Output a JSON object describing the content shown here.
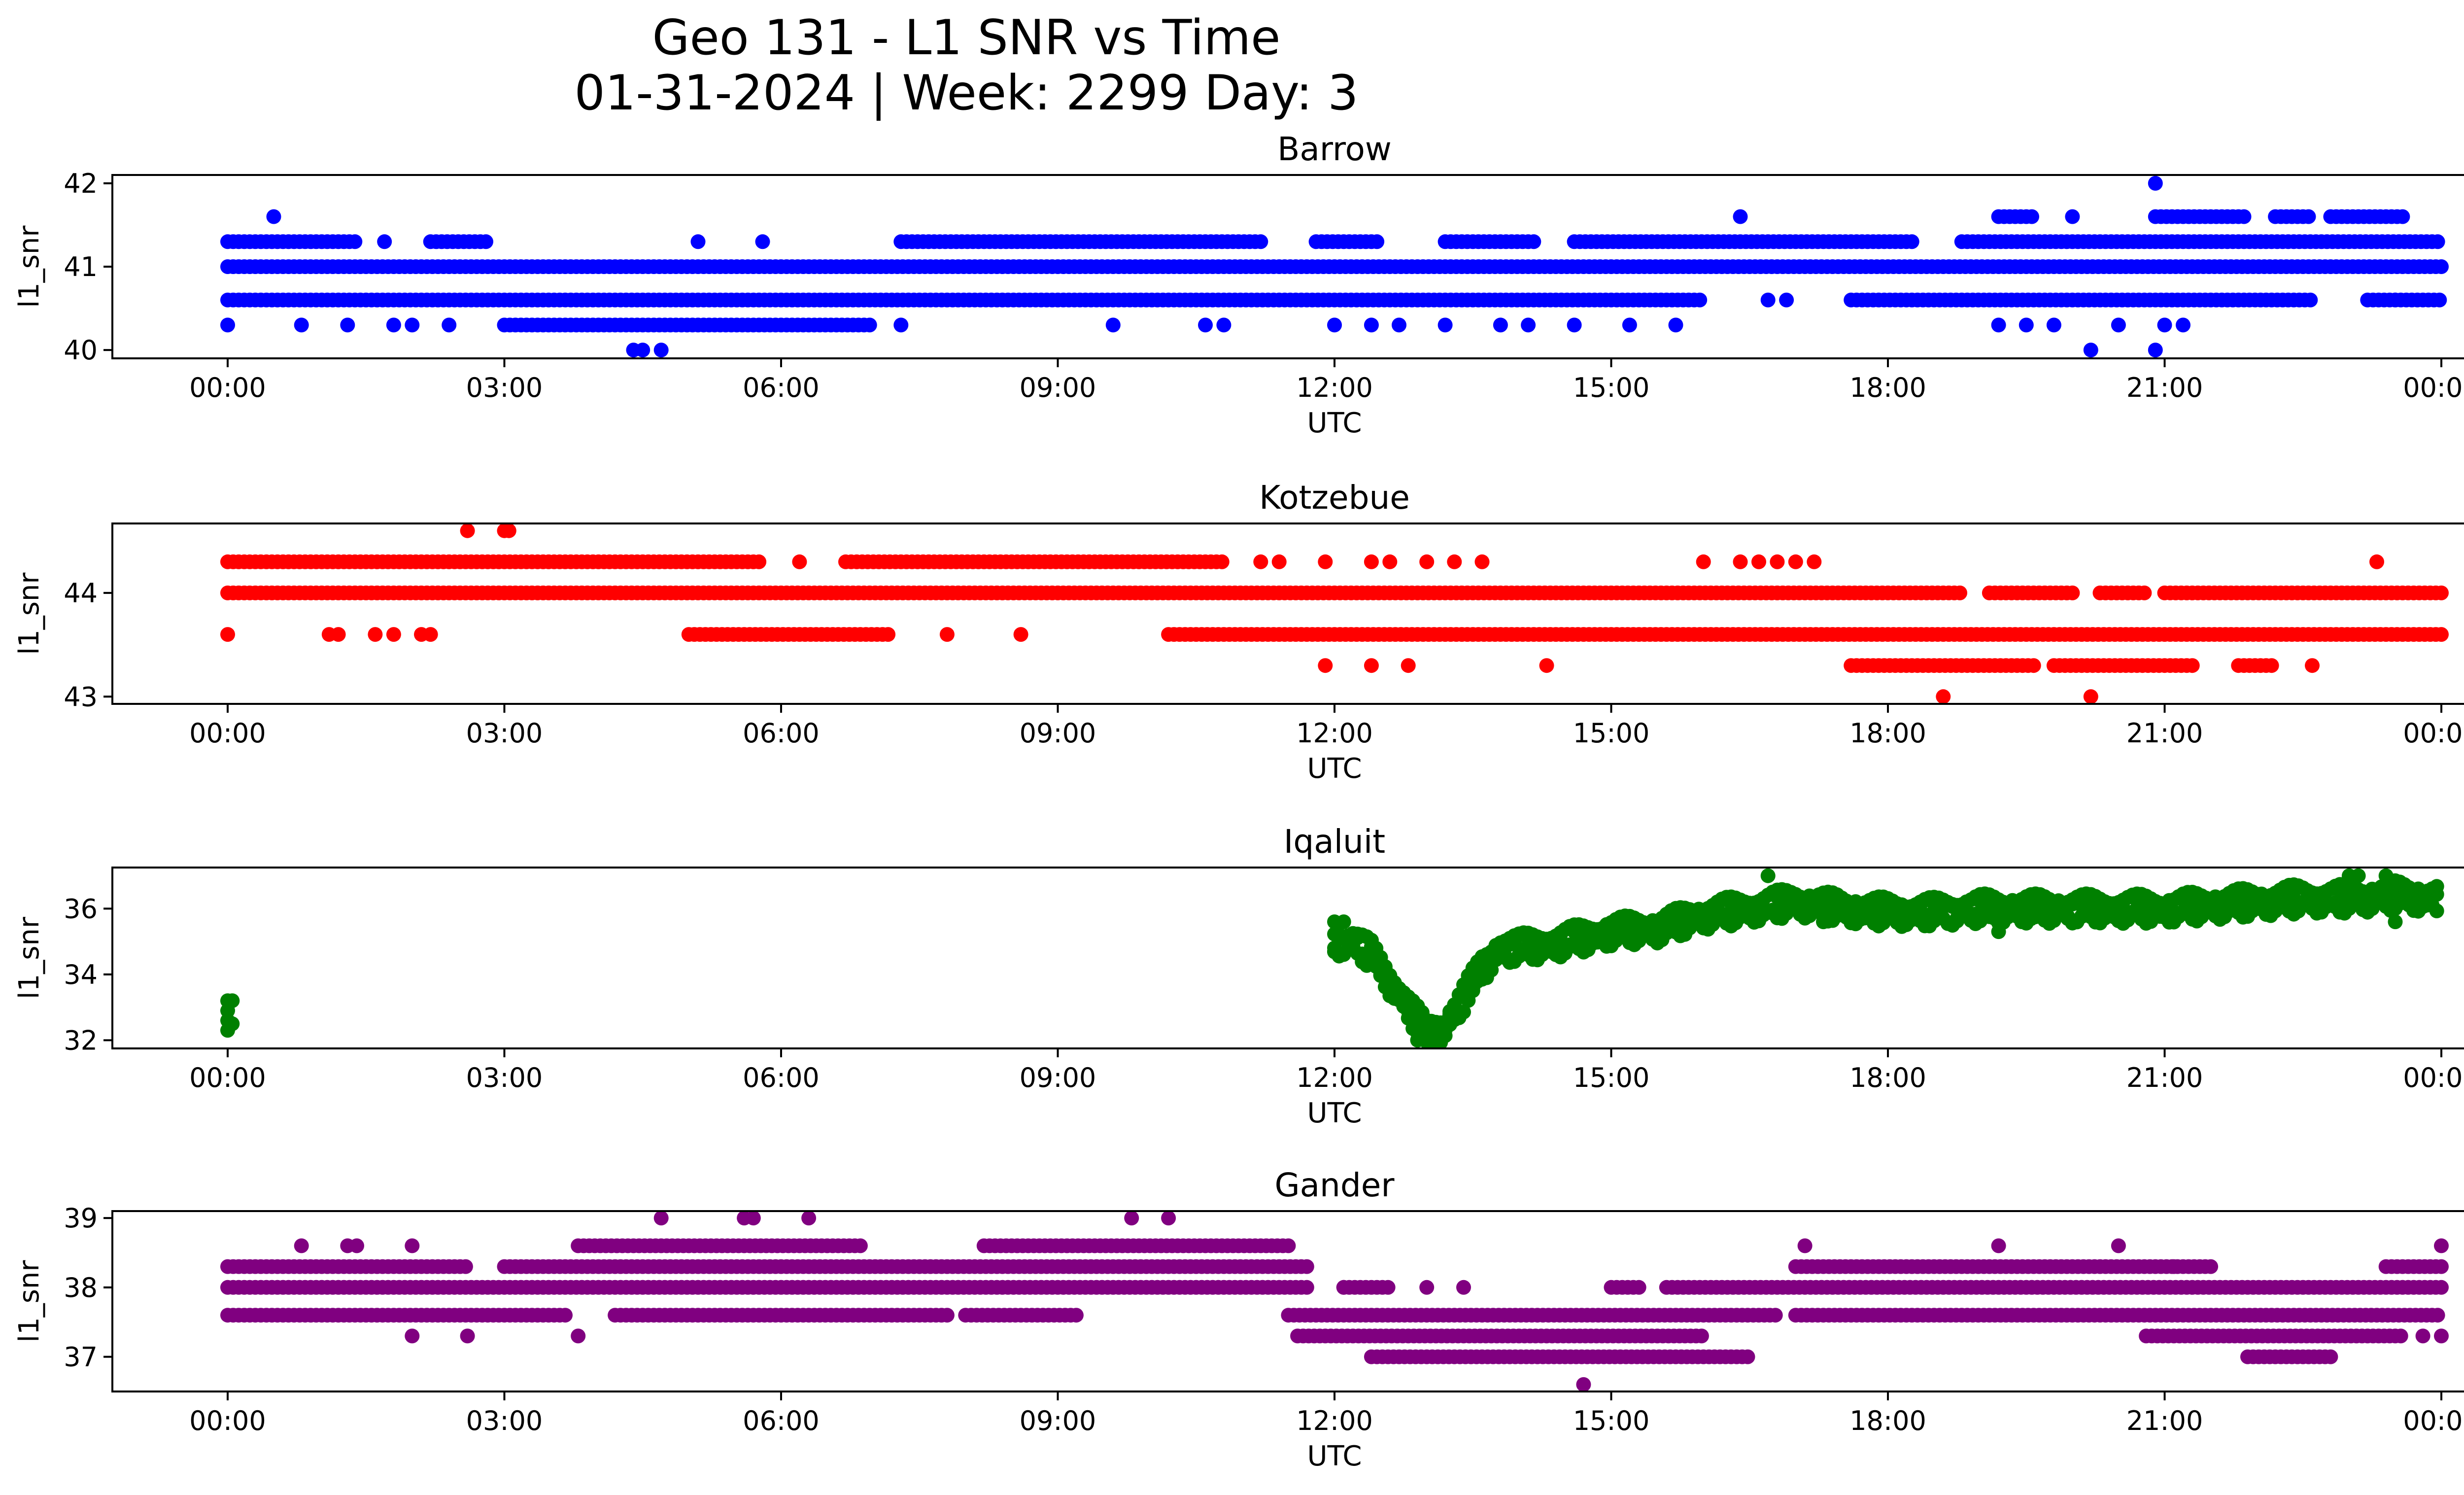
{
  "title_line1": "Geo 131 - L1 SNR vs Time",
  "title_line2": "01-31-2024 | Week: 2299 Day: 3",
  "x_tick_labels": [
    "00:00",
    "03:00",
    "06:00",
    "09:00",
    "12:00",
    "15:00",
    "18:00",
    "21:00",
    "00:00"
  ],
  "chart_data": [
    {
      "type": "scatter",
      "title": "Barrow",
      "xlabel": "UTC",
      "ylabel": "l1_snr",
      "color": "#0000ff",
      "xlim_hours": [
        -1.25,
        25.25
      ],
      "ylim": [
        39.9,
        42.1
      ],
      "yticks": [
        40,
        41,
        42
      ],
      "ytick_labels": [
        "40",
        "41",
        "42"
      ],
      "levels": [
        {
          "y": 41.0,
          "ranges": [
            [
              0.0,
              24.0
            ]
          ]
        },
        {
          "y": 40.6,
          "ranges": [
            [
              0.0,
              16.0
            ],
            [
              17.6,
              22.6
            ],
            [
              23.2,
              24.0
            ]
          ]
        },
        {
          "y": 41.3,
          "ranges": [
            [
              0.0,
              1.4
            ],
            [
              2.2,
              2.8
            ],
            [
              7.3,
              11.2
            ],
            [
              11.8,
              12.5
            ],
            [
              13.2,
              14.2
            ],
            [
              14.6,
              18.3
            ],
            [
              18.8,
              24.0
            ]
          ]
        },
        {
          "y": 40.3,
          "ranges": [
            [
              3.0,
              7.0
            ]
          ]
        },
        {
          "y": 41.6,
          "ranges": [
            [
              19.2,
              19.6
            ],
            [
              20.9,
              21.9
            ],
            [
              22.2,
              22.6
            ],
            [
              22.8,
              23.6
            ]
          ]
        }
      ],
      "points": [
        {
          "x": 0.0,
          "y": 40.3
        },
        {
          "x": 0.5,
          "y": 41.6
        },
        {
          "x": 0.8,
          "y": 40.3
        },
        {
          "x": 1.3,
          "y": 40.3
        },
        {
          "x": 1.7,
          "y": 41.3
        },
        {
          "x": 1.8,
          "y": 40.3
        },
        {
          "x": 2.0,
          "y": 40.3
        },
        {
          "x": 2.4,
          "y": 40.3
        },
        {
          "x": 4.4,
          "y": 40.0
        },
        {
          "x": 4.5,
          "y": 40.0
        },
        {
          "x": 4.7,
          "y": 40.0
        },
        {
          "x": 5.1,
          "y": 41.3
        },
        {
          "x": 5.8,
          "y": 41.3
        },
        {
          "x": 7.3,
          "y": 40.3
        },
        {
          "x": 9.6,
          "y": 40.3
        },
        {
          "x": 10.6,
          "y": 40.3
        },
        {
          "x": 10.8,
          "y": 40.3
        },
        {
          "x": 12.0,
          "y": 40.3
        },
        {
          "x": 12.4,
          "y": 40.3
        },
        {
          "x": 12.7,
          "y": 40.3
        },
        {
          "x": 13.2,
          "y": 40.3
        },
        {
          "x": 13.8,
          "y": 40.3
        },
        {
          "x": 14.1,
          "y": 40.3
        },
        {
          "x": 14.6,
          "y": 40.3
        },
        {
          "x": 15.2,
          "y": 40.3
        },
        {
          "x": 15.7,
          "y": 40.3
        },
        {
          "x": 16.4,
          "y": 41.6
        },
        {
          "x": 16.7,
          "y": 40.6
        },
        {
          "x": 16.9,
          "y": 40.6
        },
        {
          "x": 19.2,
          "y": 40.3
        },
        {
          "x": 19.5,
          "y": 40.3
        },
        {
          "x": 19.8,
          "y": 40.3
        },
        {
          "x": 20.2,
          "y": 40.0
        },
        {
          "x": 20.5,
          "y": 40.3
        },
        {
          "x": 20.9,
          "y": 40.0
        },
        {
          "x": 21.0,
          "y": 40.3
        },
        {
          "x": 21.2,
          "y": 40.3
        },
        {
          "x": 20.0,
          "y": 41.6
        },
        {
          "x": 20.9,
          "y": 42.0
        },
        {
          "x": 23.5,
          "y": 40.6
        }
      ]
    },
    {
      "type": "scatter",
      "title": "Kotzebue",
      "xlabel": "UTC",
      "ylabel": "l1_snr",
      "color": "#ff0000",
      "xlim_hours": [
        -1.25,
        25.25
      ],
      "ylim": [
        42.93,
        44.67
      ],
      "yticks": [
        43,
        44
      ],
      "ytick_labels": [
        "43",
        "44"
      ],
      "levels": [
        {
          "y": 44.0,
          "ranges": [
            [
              0.0,
              18.8
            ],
            [
              19.1,
              20.0
            ],
            [
              20.3,
              20.8
            ],
            [
              21.0,
              24.0
            ]
          ]
        },
        {
          "y": 44.3,
          "ranges": [
            [
              0.0,
              5.8
            ],
            [
              6.7,
              10.8
            ]
          ]
        },
        {
          "y": 43.6,
          "ranges": [
            [
              5.0,
              7.2
            ],
            [
              10.2,
              24.0
            ]
          ]
        },
        {
          "y": 43.3,
          "ranges": [
            [
              17.6,
              19.6
            ],
            [
              19.8,
              21.3
            ],
            [
              21.8,
              22.2
            ]
          ]
        }
      ],
      "points": [
        {
          "x": 0.0,
          "y": 43.6
        },
        {
          "x": 1.1,
          "y": 43.6
        },
        {
          "x": 1.2,
          "y": 43.6
        },
        {
          "x": 1.6,
          "y": 43.6
        },
        {
          "x": 1.8,
          "y": 43.6
        },
        {
          "x": 2.1,
          "y": 43.6
        },
        {
          "x": 2.2,
          "y": 43.6
        },
        {
          "x": 2.6,
          "y": 44.6
        },
        {
          "x": 3.0,
          "y": 44.6
        },
        {
          "x": 3.05,
          "y": 44.6
        },
        {
          "x": 6.2,
          "y": 44.3
        },
        {
          "x": 7.8,
          "y": 43.6
        },
        {
          "x": 8.6,
          "y": 43.6
        },
        {
          "x": 11.2,
          "y": 44.3
        },
        {
          "x": 11.4,
          "y": 44.3
        },
        {
          "x": 11.9,
          "y": 44.3
        },
        {
          "x": 11.9,
          "y": 43.3
        },
        {
          "x": 12.4,
          "y": 44.3
        },
        {
          "x": 12.4,
          "y": 43.3
        },
        {
          "x": 12.6,
          "y": 44.3
        },
        {
          "x": 12.8,
          "y": 43.3
        },
        {
          "x": 13.0,
          "y": 44.3
        },
        {
          "x": 13.3,
          "y": 44.3
        },
        {
          "x": 13.6,
          "y": 44.3
        },
        {
          "x": 14.3,
          "y": 43.3
        },
        {
          "x": 16.0,
          "y": 44.3
        },
        {
          "x": 16.4,
          "y": 44.3
        },
        {
          "x": 16.6,
          "y": 44.3
        },
        {
          "x": 16.8,
          "y": 44.3
        },
        {
          "x": 17.0,
          "y": 44.3
        },
        {
          "x": 17.2,
          "y": 44.3
        },
        {
          "x": 18.6,
          "y": 43.0
        },
        {
          "x": 20.2,
          "y": 43.0
        },
        {
          "x": 22.6,
          "y": 43.3
        },
        {
          "x": 23.3,
          "y": 44.3
        }
      ]
    },
    {
      "type": "scatter",
      "title": "Iqaluit",
      "xlabel": "UTC",
      "ylabel": "l1_snr",
      "color": "#008000",
      "xlim_hours": [
        -1.25,
        25.25
      ],
      "ylim": [
        31.75,
        37.25
      ],
      "yticks": [
        32,
        34,
        36
      ],
      "ytick_labels": [
        "32",
        "34",
        "36"
      ],
      "curve": [
        [
          12.0,
          35.0
        ],
        [
          12.2,
          35.0
        ],
        [
          12.4,
          34.6
        ],
        [
          12.6,
          33.8
        ],
        [
          12.8,
          33.0
        ],
        [
          13.0,
          32.2
        ],
        [
          13.2,
          32.4
        ],
        [
          13.4,
          33.3
        ],
        [
          13.6,
          34.2
        ],
        [
          13.8,
          34.8
        ],
        [
          14.0,
          34.8
        ],
        [
          14.5,
          35.0
        ],
        [
          15.0,
          35.3
        ],
        [
          15.5,
          35.4
        ],
        [
          16.0,
          35.8
        ],
        [
          16.5,
          36.0
        ],
        [
          17.0,
          36.2
        ],
        [
          17.5,
          36.0
        ],
        [
          18.0,
          35.9
        ],
        [
          18.5,
          35.9
        ],
        [
          19.0,
          36.0
        ],
        [
          19.5,
          36.0
        ],
        [
          20.0,
          36.0
        ],
        [
          20.5,
          36.0
        ],
        [
          21.0,
          36.0
        ],
        [
          21.5,
          36.1
        ],
        [
          22.0,
          36.2
        ],
        [
          22.5,
          36.3
        ],
        [
          23.0,
          36.3
        ],
        [
          23.5,
          36.4
        ],
        [
          24.0,
          36.3
        ]
      ],
      "points": [
        {
          "x": 0.0,
          "y": 32.3
        },
        {
          "x": 0.0,
          "y": 32.6
        },
        {
          "x": 0.0,
          "y": 32.9
        },
        {
          "x": 0.0,
          "y": 33.2
        },
        {
          "x": 0.05,
          "y": 32.5
        },
        {
          "x": 0.05,
          "y": 33.2
        },
        {
          "x": 12.0,
          "y": 35.6
        },
        {
          "x": 12.1,
          "y": 35.6
        },
        {
          "x": 12.0,
          "y": 34.7
        },
        {
          "x": 12.9,
          "y": 32.0
        },
        {
          "x": 13.0,
          "y": 32.0
        },
        {
          "x": 13.1,
          "y": 32.0
        },
        {
          "x": 16.7,
          "y": 37.0
        },
        {
          "x": 23.0,
          "y": 37.0
        },
        {
          "x": 23.1,
          "y": 37.0
        },
        {
          "x": 23.4,
          "y": 37.0
        },
        {
          "x": 23.5,
          "y": 35.6
        },
        {
          "x": 19.2,
          "y": 35.3
        },
        {
          "x": 17.3,
          "y": 35.6
        }
      ]
    },
    {
      "type": "scatter",
      "title": "Gander",
      "xlabel": "UTC",
      "ylabel": "l1_snr",
      "color": "#800080",
      "xlim_hours": [
        -1.25,
        25.25
      ],
      "ylim": [
        36.5,
        39.1
      ],
      "yticks": [
        37,
        38,
        39
      ],
      "ytick_labels": [
        "37",
        "38",
        "39"
      ],
      "levels": [
        {
          "y": 38.0,
          "ranges": [
            [
              0.0,
              11.7
            ],
            [
              12.1,
              12.6
            ],
            [
              15.0,
              15.3
            ],
            [
              15.6,
              24.0
            ]
          ]
        },
        {
          "y": 38.3,
          "ranges": [
            [
              0.0,
              2.6
            ],
            [
              3.0,
              11.7
            ],
            [
              17.0,
              21.5
            ],
            [
              23.4,
              24.0
            ]
          ]
        },
        {
          "y": 37.6,
          "ranges": [
            [
              0.0,
              3.7
            ],
            [
              4.2,
              7.8
            ],
            [
              8.0,
              9.2
            ],
            [
              11.5,
              16.8
            ],
            [
              17.0,
              24.0
            ]
          ]
        },
        {
          "y": 38.6,
          "ranges": [
            [
              3.8,
              6.9
            ],
            [
              8.2,
              11.5
            ]
          ]
        },
        {
          "y": 37.3,
          "ranges": [
            [
              11.6,
              16.0
            ],
            [
              20.8,
              23.6
            ]
          ]
        },
        {
          "y": 37.0,
          "ranges": [
            [
              12.4,
              16.5
            ],
            [
              21.9,
              22.8
            ]
          ]
        }
      ],
      "points": [
        {
          "x": 0.8,
          "y": 38.6
        },
        {
          "x": 1.3,
          "y": 38.6
        },
        {
          "x": 1.4,
          "y": 38.6
        },
        {
          "x": 2.0,
          "y": 38.6
        },
        {
          "x": 2.0,
          "y": 37.3
        },
        {
          "x": 2.6,
          "y": 37.3
        },
        {
          "x": 3.8,
          "y": 37.3
        },
        {
          "x": 4.7,
          "y": 39.0
        },
        {
          "x": 5.6,
          "y": 39.0
        },
        {
          "x": 5.7,
          "y": 39.0
        },
        {
          "x": 6.3,
          "y": 39.0
        },
        {
          "x": 9.8,
          "y": 39.0
        },
        {
          "x": 10.2,
          "y": 39.0
        },
        {
          "x": 13.0,
          "y": 38.0
        },
        {
          "x": 13.4,
          "y": 38.0
        },
        {
          "x": 14.7,
          "y": 36.6
        },
        {
          "x": 17.1,
          "y": 38.6
        },
        {
          "x": 19.2,
          "y": 38.6
        },
        {
          "x": 20.5,
          "y": 38.6
        },
        {
          "x": 21.1,
          "y": 38.3
        },
        {
          "x": 24.0,
          "y": 38.6
        },
        {
          "x": 24.0,
          "y": 37.3
        },
        {
          "x": 23.8,
          "y": 37.3
        },
        {
          "x": 12.1,
          "y": 38.0
        }
      ]
    }
  ]
}
